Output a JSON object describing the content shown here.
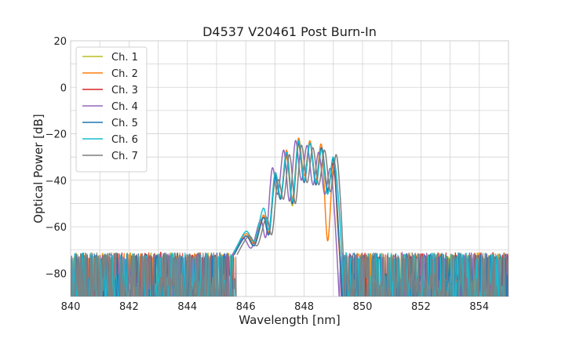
{
  "chart_data": {
    "type": "line",
    "title": "D4537 V20461 Post Burn-In",
    "xlabel": "Wavelength [nm]",
    "ylabel": "Optical Power [dB]",
    "xlim": [
      840,
      855
    ],
    "ylim": [
      -90,
      20
    ],
    "x_ticks": [
      840,
      842,
      844,
      846,
      848,
      850,
      852,
      854
    ],
    "y_ticks": [
      20,
      0,
      -20,
      -40,
      -60,
      -80
    ],
    "x_tick_labels": [
      "840",
      "842",
      "844",
      "846",
      "848",
      "850",
      "852",
      "854"
    ],
    "y_tick_labels": [
      "20",
      "0",
      "−20",
      "−40",
      "−60",
      "−80"
    ],
    "grid": true,
    "legend_position": "top-left",
    "noise_floor_db": -80,
    "series": [
      {
        "name": "Ch. 1",
        "color": "#bcbd22",
        "x": [
          845.6,
          846.0,
          846.3,
          846.6,
          846.8,
          847.0,
          847.2,
          847.4,
          847.6,
          847.8,
          848.0,
          848.2,
          848.4,
          848.6,
          848.8,
          849.0,
          849.15,
          849.3
        ],
        "y": [
          -72,
          -64,
          -68,
          -56,
          -63,
          -40,
          -48,
          -30,
          -51,
          -25,
          -40,
          -24,
          -42,
          -27,
          -45,
          -32,
          -55,
          -90
        ]
      },
      {
        "name": "Ch. 2",
        "color": "#ff7f0e",
        "x": [
          845.6,
          846.0,
          846.3,
          846.6,
          846.8,
          847.0,
          847.2,
          847.4,
          847.6,
          847.8,
          848.0,
          848.2,
          848.4,
          848.6,
          848.8,
          849.0,
          849.15,
          849.3
        ],
        "y": [
          -71,
          -63,
          -67,
          -55,
          -62,
          -37,
          -47,
          -27,
          -48,
          -22,
          -38,
          -23,
          -40,
          -25,
          -66,
          -34,
          -60,
          -90
        ]
      },
      {
        "name": "Ch. 3",
        "color": "#d62728",
        "x": [
          845.6,
          846.0,
          846.3,
          846.6,
          846.8,
          847.0,
          847.2,
          847.4,
          847.6,
          847.8,
          848.0,
          848.2,
          848.4,
          848.6,
          848.8,
          849.0,
          849.15,
          849.3
        ],
        "y": [
          -72,
          -64,
          -68,
          -56,
          -63,
          -38,
          -48,
          -29,
          -50,
          -24,
          -41,
          -24,
          -41,
          -26,
          -44,
          -33,
          -57,
          -90
        ]
      },
      {
        "name": "Ch. 4",
        "color": "#9467bd",
        "x": [
          845.5,
          845.9,
          846.2,
          846.5,
          846.7,
          846.9,
          847.1,
          847.3,
          847.5,
          847.7,
          847.9,
          848.1,
          848.3,
          848.5,
          848.7,
          848.9,
          849.05,
          849.2
        ],
        "y": [
          -73,
          -65,
          -69,
          -57,
          -64,
          -35,
          -46,
          -27,
          -49,
          -23,
          -40,
          -25,
          -42,
          -28,
          -46,
          -35,
          -56,
          -90
        ]
      },
      {
        "name": "Ch. 5",
        "color": "#1f77b4",
        "x": [
          845.6,
          846.0,
          846.3,
          846.6,
          846.8,
          847.0,
          847.2,
          847.4,
          847.6,
          847.8,
          848.0,
          848.2,
          848.4,
          848.6,
          848.8,
          849.0,
          849.15,
          849.3
        ],
        "y": [
          -72,
          -64,
          -68,
          -56,
          -63,
          -39,
          -48,
          -28,
          -50,
          -24,
          -41,
          -24,
          -42,
          -26,
          -45,
          -31,
          -56,
          -90
        ]
      },
      {
        "name": "Ch. 6",
        "color": "#17becf",
        "x": [
          845.6,
          846.0,
          846.3,
          846.6,
          846.8,
          847.0,
          847.2,
          847.4,
          847.6,
          847.8,
          848.0,
          848.2,
          848.4,
          848.6,
          848.8,
          849.0,
          849.2,
          849.35
        ],
        "y": [
          -71,
          -62,
          -66,
          -52,
          -61,
          -37,
          -47,
          -28,
          -49,
          -23,
          -40,
          -24,
          -41,
          -27,
          -46,
          -30,
          -52,
          -90
        ]
      },
      {
        "name": "Ch. 7",
        "color": "#7f7f7f",
        "x": [
          845.7,
          846.1,
          846.4,
          846.7,
          846.9,
          847.1,
          847.3,
          847.5,
          847.7,
          847.9,
          848.1,
          848.3,
          848.5,
          848.7,
          848.9,
          849.1,
          849.25,
          849.4
        ],
        "y": [
          -72,
          -64,
          -68,
          -56,
          -63,
          -40,
          -48,
          -29,
          -50,
          -25,
          -41,
          -26,
          -42,
          -27,
          -45,
          -29,
          -50,
          -90
        ]
      }
    ]
  }
}
